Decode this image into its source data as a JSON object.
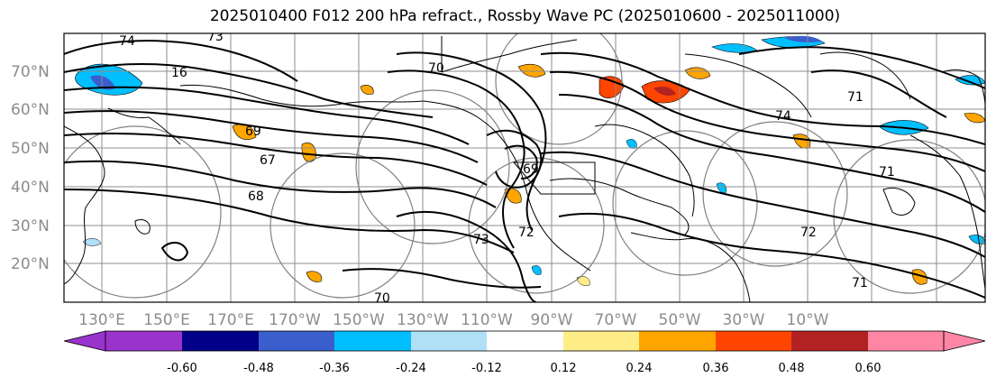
{
  "title": "2025010400 F012 200 hPa refract., Rossby Wave PC (2025010600 - 2025011000)",
  "map": {
    "lat_labels": [
      "70°N",
      "60°N",
      "50°N",
      "40°N",
      "30°N",
      "20°N"
    ],
    "lon_labels": [
      "130°E",
      "150°E",
      "170°E",
      "170°W",
      "150°W",
      "130°W",
      "110°W",
      "90°W",
      "70°W",
      "50°W",
      "30°W",
      "10°W"
    ],
    "contour_labels": [
      "74",
      "73",
      "16",
      "70",
      "67",
      "68",
      "69",
      "73",
      "72",
      "71",
      "70",
      "71",
      "69",
      "72",
      "71",
      "74"
    ],
    "colors": {
      "land_outline": "#000000",
      "grid": "#8c8c8c",
      "contour": "#000000",
      "circle": "#808080"
    }
  },
  "colorbar": {
    "tick_labels": [
      "-0.60",
      "-0.48",
      "-0.36",
      "-0.24",
      "-0.12",
      "0.12",
      "0.24",
      "0.36",
      "0.48",
      "0.60"
    ],
    "colors": [
      "#9933cc",
      "#000088",
      "#3a5fcd",
      "#00bfff",
      "#b0e0f6",
      "#ffffff",
      "#ffee88",
      "#ffa500",
      "#ff4500",
      "#b22222",
      "#ff85a5"
    ]
  }
}
